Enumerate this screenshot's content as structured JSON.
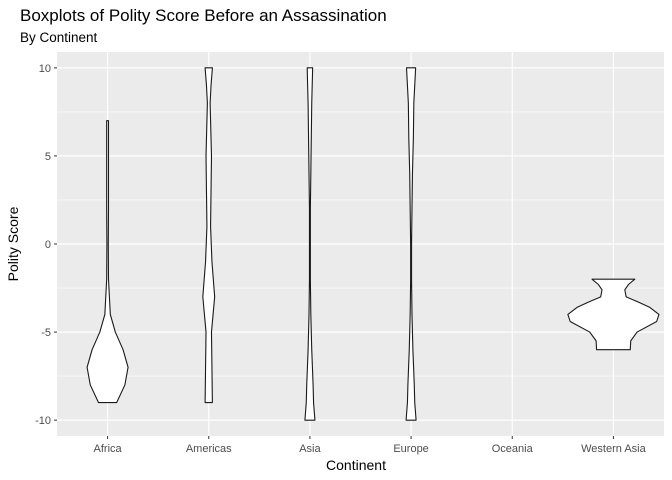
{
  "chart_data": {
    "type": "violin",
    "title": "Boxplots of Polity Score Before an Assassination",
    "subtitle": "By Continent",
    "xlabel": "Continent",
    "ylabel": "Polity Score",
    "ylim": [
      -10.9,
      10.9
    ],
    "y_ticks": [
      -10,
      -5,
      0,
      5,
      10
    ],
    "grid": true,
    "categories": [
      "Africa",
      "Americas",
      "Asia",
      "Europe",
      "Oceania",
      "Western Asia"
    ],
    "violins": [
      {
        "category": "Africa",
        "profile": [
          [
            -9,
            0.2
          ],
          [
            -8,
            0.38
          ],
          [
            -7,
            0.45
          ],
          [
            -6,
            0.34
          ],
          [
            -5,
            0.17
          ],
          [
            -4,
            0.06
          ],
          [
            -2,
            0.02
          ],
          [
            0,
            0.015
          ],
          [
            2,
            0.02
          ],
          [
            4,
            0.02
          ],
          [
            6,
            0.02
          ],
          [
            7,
            0.02
          ]
        ]
      },
      {
        "category": "Americas",
        "profile": [
          [
            -9,
            0.08
          ],
          [
            -7,
            0.07
          ],
          [
            -5,
            0.06
          ],
          [
            -3,
            0.13
          ],
          [
            -1,
            0.07
          ],
          [
            1,
            0.04
          ],
          [
            3,
            0.05
          ],
          [
            5,
            0.06
          ],
          [
            7,
            0.04
          ],
          [
            8,
            0.03
          ],
          [
            9,
            0.05
          ],
          [
            10,
            0.08
          ]
        ]
      },
      {
        "category": "Asia",
        "profile": [
          [
            -10,
            0.11
          ],
          [
            -9,
            0.08
          ],
          [
            -8,
            0.07
          ],
          [
            -6,
            0.04
          ],
          [
            -4,
            0.02
          ],
          [
            -2,
            0.01
          ],
          [
            0,
            0.01
          ],
          [
            2,
            0.01
          ],
          [
            4,
            0.02
          ],
          [
            6,
            0.03
          ],
          [
            8,
            0.04
          ],
          [
            9,
            0.05
          ],
          [
            10,
            0.06
          ]
        ]
      },
      {
        "category": "Europe",
        "profile": [
          [
            -10,
            0.11
          ],
          [
            -9,
            0.08
          ],
          [
            -8,
            0.07
          ],
          [
            -6,
            0.04
          ],
          [
            -4,
            0.02
          ],
          [
            -2,
            0.01
          ],
          [
            0,
            0.01
          ],
          [
            2,
            0.02
          ],
          [
            4,
            0.03
          ],
          [
            6,
            0.05
          ],
          [
            8,
            0.06
          ],
          [
            9,
            0.08
          ],
          [
            10,
            0.1
          ]
        ]
      },
      {
        "category": "Western Asia",
        "profile": [
          [
            -6,
            0.37
          ],
          [
            -5.5,
            0.38
          ],
          [
            -5,
            0.52
          ],
          [
            -4.4,
            0.95
          ],
          [
            -4,
            1.0
          ],
          [
            -3.6,
            0.8
          ],
          [
            -3.3,
            0.55
          ],
          [
            -3,
            0.28
          ],
          [
            -2.6,
            0.25
          ],
          [
            -2.3,
            0.33
          ],
          [
            -2,
            0.47
          ]
        ]
      }
    ]
  }
}
